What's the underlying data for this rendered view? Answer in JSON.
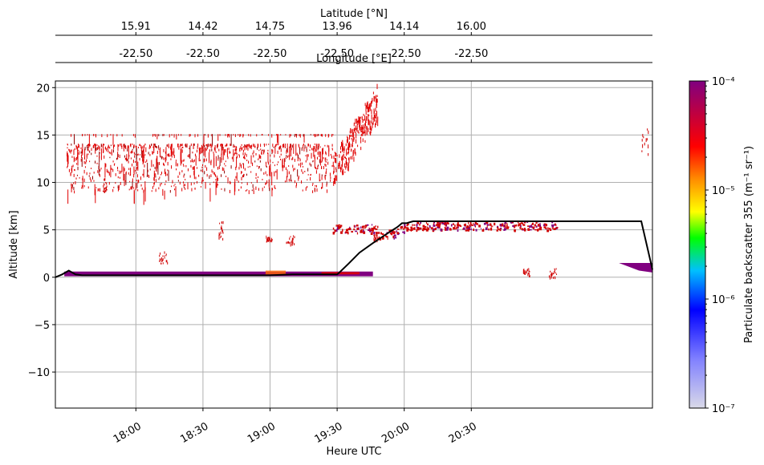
{
  "chart_data": {
    "type": "heatmap",
    "xlabel": "Heure UTC",
    "ylabel": "Altitude [km]",
    "x_ticks": [
      "18:00",
      "18:30",
      "19:00",
      "19:30",
      "20:00",
      "20:30"
    ],
    "x_tick_minutes": [
      1080,
      1110,
      1140,
      1170,
      1200,
      1230
    ],
    "xlim_minutes": [
      1044,
      1311
    ],
    "xlim": [
      "17:24",
      "21:51"
    ],
    "ylim": [
      -13.8,
      20.7
    ],
    "y_ticks": [
      -10,
      -5,
      0,
      5,
      10,
      15,
      20
    ],
    "grid": true,
    "top_axes": [
      {
        "label": "Longitude [°E]",
        "tick_minutes": [
          1080,
          1110,
          1140,
          1170,
          1200,
          1230
        ],
        "tick_labels": [
          "-22.50",
          "-22.50",
          "-22.50",
          "-22.50",
          "-22.50",
          "-22.50"
        ]
      },
      {
        "label": "Latitude [°N]",
        "tick_minutes": [
          1080,
          1110,
          1140,
          1170,
          1200,
          1230
        ],
        "tick_labels": [
          "15.91",
          "14.42",
          "14.75",
          "13.96",
          "14.14",
          "16.00"
        ]
      }
    ],
    "colorbar": {
      "label": "Particulate backscatter 355 (m⁻¹ sr⁻¹)",
      "scale": "log",
      "ticks": [
        "10⁻⁷",
        "10⁻⁶",
        "10⁻⁵",
        "10⁻⁴"
      ],
      "range": [
        1e-07,
        0.0001
      ],
      "colors": [
        "#d9d9e8",
        "#0000ff",
        "#00ffff",
        "#00ff00",
        "#ffff00",
        "#ff8c00",
        "#ff0000",
        "#800080"
      ]
    },
    "ground_line": {
      "name": "surface",
      "color": "#000000",
      "x_minutes": [
        1044,
        1047,
        1050,
        1053,
        1056,
        1060,
        1080,
        1110,
        1140,
        1150,
        1170,
        1171,
        1175,
        1180,
        1186,
        1193,
        1197,
        1199,
        1201,
        1204,
        1217,
        1230,
        1234,
        1244,
        1248,
        1255,
        1263,
        1270,
        1279,
        1283,
        1300,
        1306,
        1311
      ],
      "altitude_km": [
        0,
        0.3,
        0.7,
        0.3,
        0.2,
        0.2,
        0.2,
        0.2,
        0.2,
        0.3,
        0.3,
        0.5,
        1.4,
        2.6,
        3.6,
        4.7,
        5.3,
        5.7,
        5.7,
        5.9,
        5.9,
        5.9,
        5.9,
        5.9,
        5.9,
        5.9,
        5.9,
        5.9,
        5.9,
        5.9,
        5.9,
        5.9,
        0.8
      ]
    },
    "features": [
      {
        "name": "boundary layer (purple)",
        "x_minutes": [
          1048,
          1186
        ],
        "altitude_km": [
          0.1,
          0.6
        ],
        "level": "1e-4"
      },
      {
        "name": "boundary layer enhanced (red)",
        "x_minutes": [
          1163,
          1180
        ],
        "altitude_km": [
          0.3,
          0.55
        ],
        "level": "5e-5"
      },
      {
        "name": "upper cirrus layer",
        "x_minutes": [
          1049,
          1168
        ],
        "altitude_km": [
          9,
          15.3
        ],
        "level": "5e-5"
      },
      {
        "name": "rising upper layer",
        "x_minutes": [
          1168,
          1188
        ],
        "altitude_km": [
          10,
          20.7
        ],
        "level": "5e-5"
      },
      {
        "name": "mid-level layer",
        "x_minutes": [
          1168,
          1268
        ],
        "altitude_km": [
          4.2,
          6.3
        ],
        "level": "5e-5"
      },
      {
        "name": "surface layer descent",
        "x_minutes": [
          1288,
          1311
        ],
        "altitude_km": [
          0.5,
          1.5
        ],
        "level": "1e-4"
      }
    ]
  }
}
